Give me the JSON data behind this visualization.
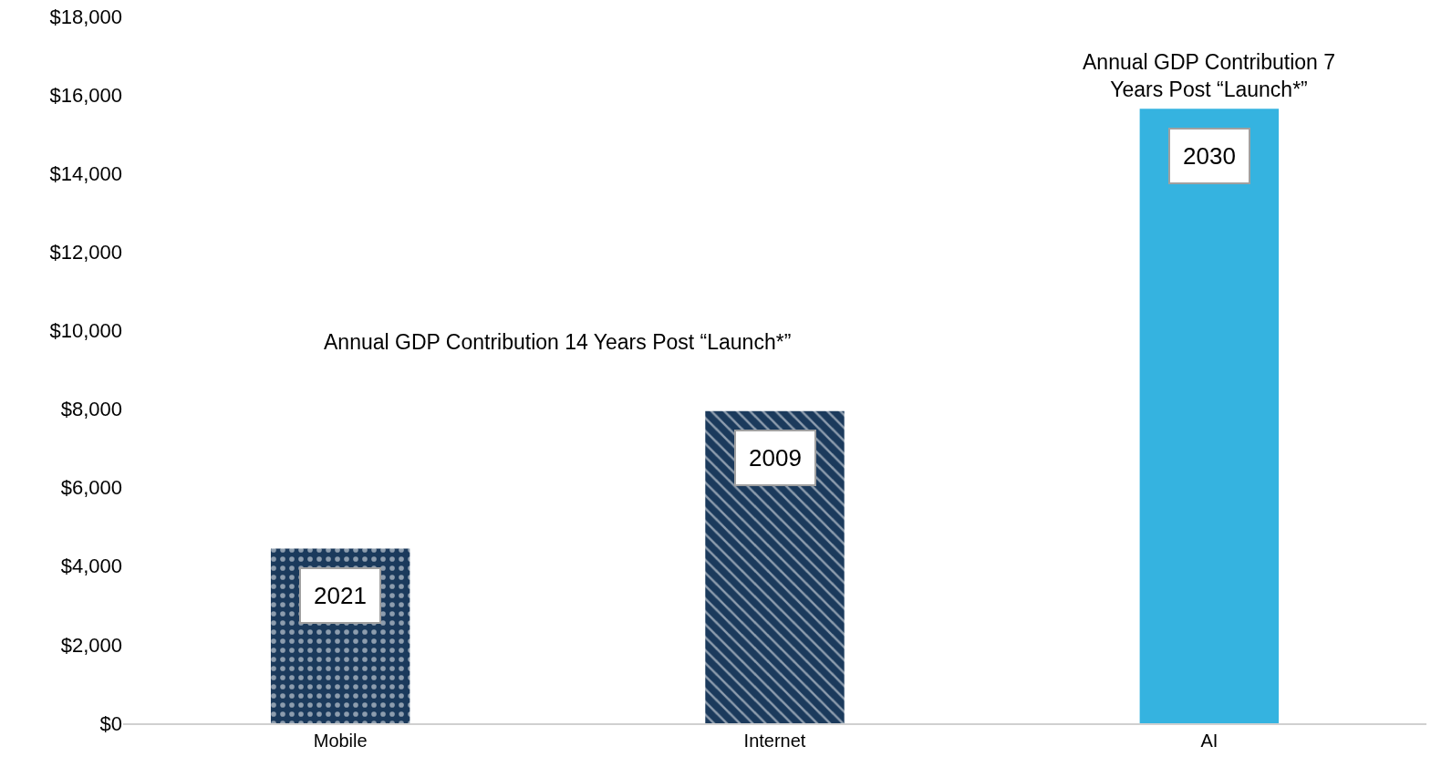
{
  "chart_data": {
    "type": "bar",
    "categories": [
      "Mobile",
      "Internet",
      "AI"
    ],
    "values": [
      4450,
      7950,
      15650
    ],
    "colors": [
      "#1b3a5c",
      "#1b3a5c",
      "#35b3e0"
    ],
    "ylim": [
      0,
      18000
    ],
    "yticks": [
      {
        "value": 0,
        "label": "$0"
      },
      {
        "value": 2000,
        "label": "$2,000"
      },
      {
        "value": 4000,
        "label": "$4,000"
      },
      {
        "value": 6000,
        "label": "$6,000"
      },
      {
        "value": 8000,
        "label": "$8,000"
      },
      {
        "value": 10000,
        "label": "$10,000"
      },
      {
        "value": 12000,
        "label": "$12,000"
      },
      {
        "value": 14000,
        "label": "$14,000"
      },
      {
        "value": 16000,
        "label": "$16,000"
      },
      {
        "value": 18000,
        "label": "$18,000"
      }
    ],
    "legend": false,
    "annotations": [
      "2021",
      "2009",
      "2030",
      "Annual GDP Contribution 14 Years Post “Launch*”",
      "Annual GDP Contribution 7 Years Post “Launch*”"
    ]
  }
}
